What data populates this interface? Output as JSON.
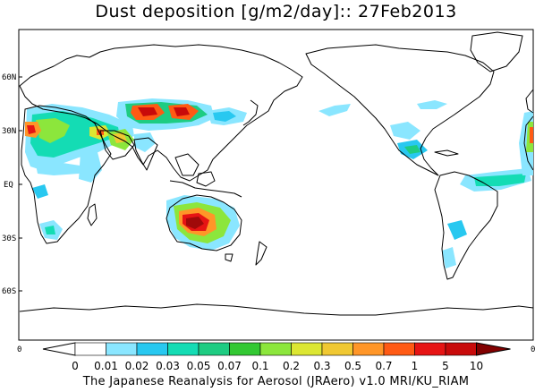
{
  "title": "Dust deposition [g/m2/day]:: 27Feb2013",
  "lat_labels": [
    "60N",
    "30N",
    "EQ",
    "30S",
    "60S"
  ],
  "lon_edge_label": "0",
  "colorbar": {
    "labels": [
      "0",
      "0.01",
      "0.02",
      "0.03",
      "0.05",
      "0.07",
      "0.1",
      "0.2",
      "0.3",
      "0.5",
      "0.7",
      "1",
      "5",
      "10"
    ],
    "colors": [
      "#ffffff",
      "#8ae6ff",
      "#28c8f0",
      "#14dcb4",
      "#1ecc82",
      "#32c832",
      "#8ce63c",
      "#dce632",
      "#f0c832",
      "#ff9628",
      "#ff5a14",
      "#e61414",
      "#c80a0a",
      "#a00a0a",
      "#820000"
    ]
  },
  "footer": "The Japanese Reanalysis for Aerosol (JRAero) v1.0 MRI/KU_RIAM"
}
